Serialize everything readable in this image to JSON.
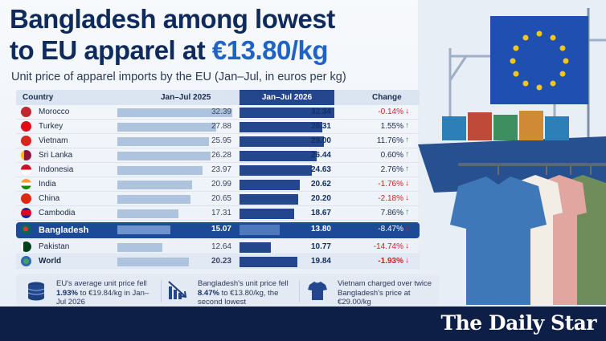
{
  "headline": {
    "line1": "Bangladesh among lowest",
    "line2_pre": "to EU apparel at ",
    "line2_accent": "€13.80/kg"
  },
  "subtitle": "Unit price of apparel imports by the EU (Jan–Jul, in euros per kg)",
  "chart_data": {
    "type": "table",
    "title": "Bangladesh among lowest to EU apparel at €13.80/kg",
    "subtitle": "Unit price of apparel imports by the EU (Jan–Jul, in euros per kg)",
    "columns": [
      "Country",
      "Jan–Jul 2025",
      "Jan–Jul 2026",
      "Change"
    ],
    "rows": [
      {
        "country": "Morocco",
        "v2025": 32.39,
        "v2025_label": "32.39",
        "v2026": 32.34,
        "v2026_label": "32.34",
        "change": "-0.14%",
        "dir": "down"
      },
      {
        "country": "Turkey",
        "v2025": 27.88,
        "v2025_label": "27.88",
        "v2026": 28.31,
        "v2026_label": "28.31",
        "change": "1.55%",
        "dir": "up"
      },
      {
        "country": "Vietnam",
        "v2025": 25.95,
        "v2025_label": "25.95",
        "v2026": 29.0,
        "v2026_label": "29.00",
        "change": "11.76%",
        "dir": "up"
      },
      {
        "country": "Sri Lanka",
        "v2025": 26.28,
        "v2025_label": "26.28",
        "v2026": 26.44,
        "v2026_label": "26.44",
        "change": "0.60%",
        "dir": "up"
      },
      {
        "country": "Indonesia",
        "v2025": 23.97,
        "v2025_label": "23.97",
        "v2026": 24.63,
        "v2026_label": "24.63",
        "change": "2.76%",
        "dir": "up"
      },
      {
        "country": "India",
        "v2025": 20.99,
        "v2025_label": "20.99",
        "v2026": 20.62,
        "v2026_label": "20.62",
        "change": "-1.76%",
        "dir": "down"
      },
      {
        "country": "China",
        "v2025": 20.65,
        "v2025_label": "20.65",
        "v2026": 20.2,
        "v2026_label": "20.20",
        "change": "-2.18%",
        "dir": "down"
      },
      {
        "country": "Cambodia",
        "v2025": 17.31,
        "v2025_label": "17.31",
        "v2026": 18.67,
        "v2026_label": "18.67",
        "change": "7.86%",
        "dir": "up"
      },
      {
        "country": "Bangladesh",
        "v2025": 15.07,
        "v2025_label": "15.07",
        "v2026": 13.8,
        "v2026_label": "13.80",
        "change": "-8.47%",
        "dir": "down",
        "highlight": true
      },
      {
        "country": "Pakistan",
        "v2025": 12.64,
        "v2025_label": "12.64",
        "v2026": 10.77,
        "v2026_label": "10.77",
        "change": "-14.74%",
        "dir": "down"
      },
      {
        "country": "World",
        "v2025": 20.23,
        "v2025_label": "20.23",
        "v2026": 19.84,
        "v2026_label": "19.84",
        "change": "-1.93%",
        "dir": "down",
        "world": true
      }
    ],
    "value_max": 33,
    "colors": {
      "bar_2025": "#aec3de",
      "bar_2026": "#23468c",
      "highlight": "#1d4a97",
      "negative": "#c8241f",
      "up_arrow": "#2e9a3f"
    }
  },
  "stats": [
    {
      "icon": "coins-stack-icon",
      "pre": "EU's average unit price fell ",
      "bold": "1.93%",
      "post": " to €19.84/kg in Jan–Jul 2026"
    },
    {
      "icon": "trend-down-icon",
      "pre": "Bangladesh's unit price fell ",
      "bold": "8.47%",
      "post": " to €13.80/kg, the second lowest"
    },
    {
      "icon": "tshirt-icon",
      "pre": "Vietnam charged over twice Bangladesh's price at €29.00/kg",
      "bold": "",
      "post": ""
    }
  ],
  "brand": "The Daily Star"
}
